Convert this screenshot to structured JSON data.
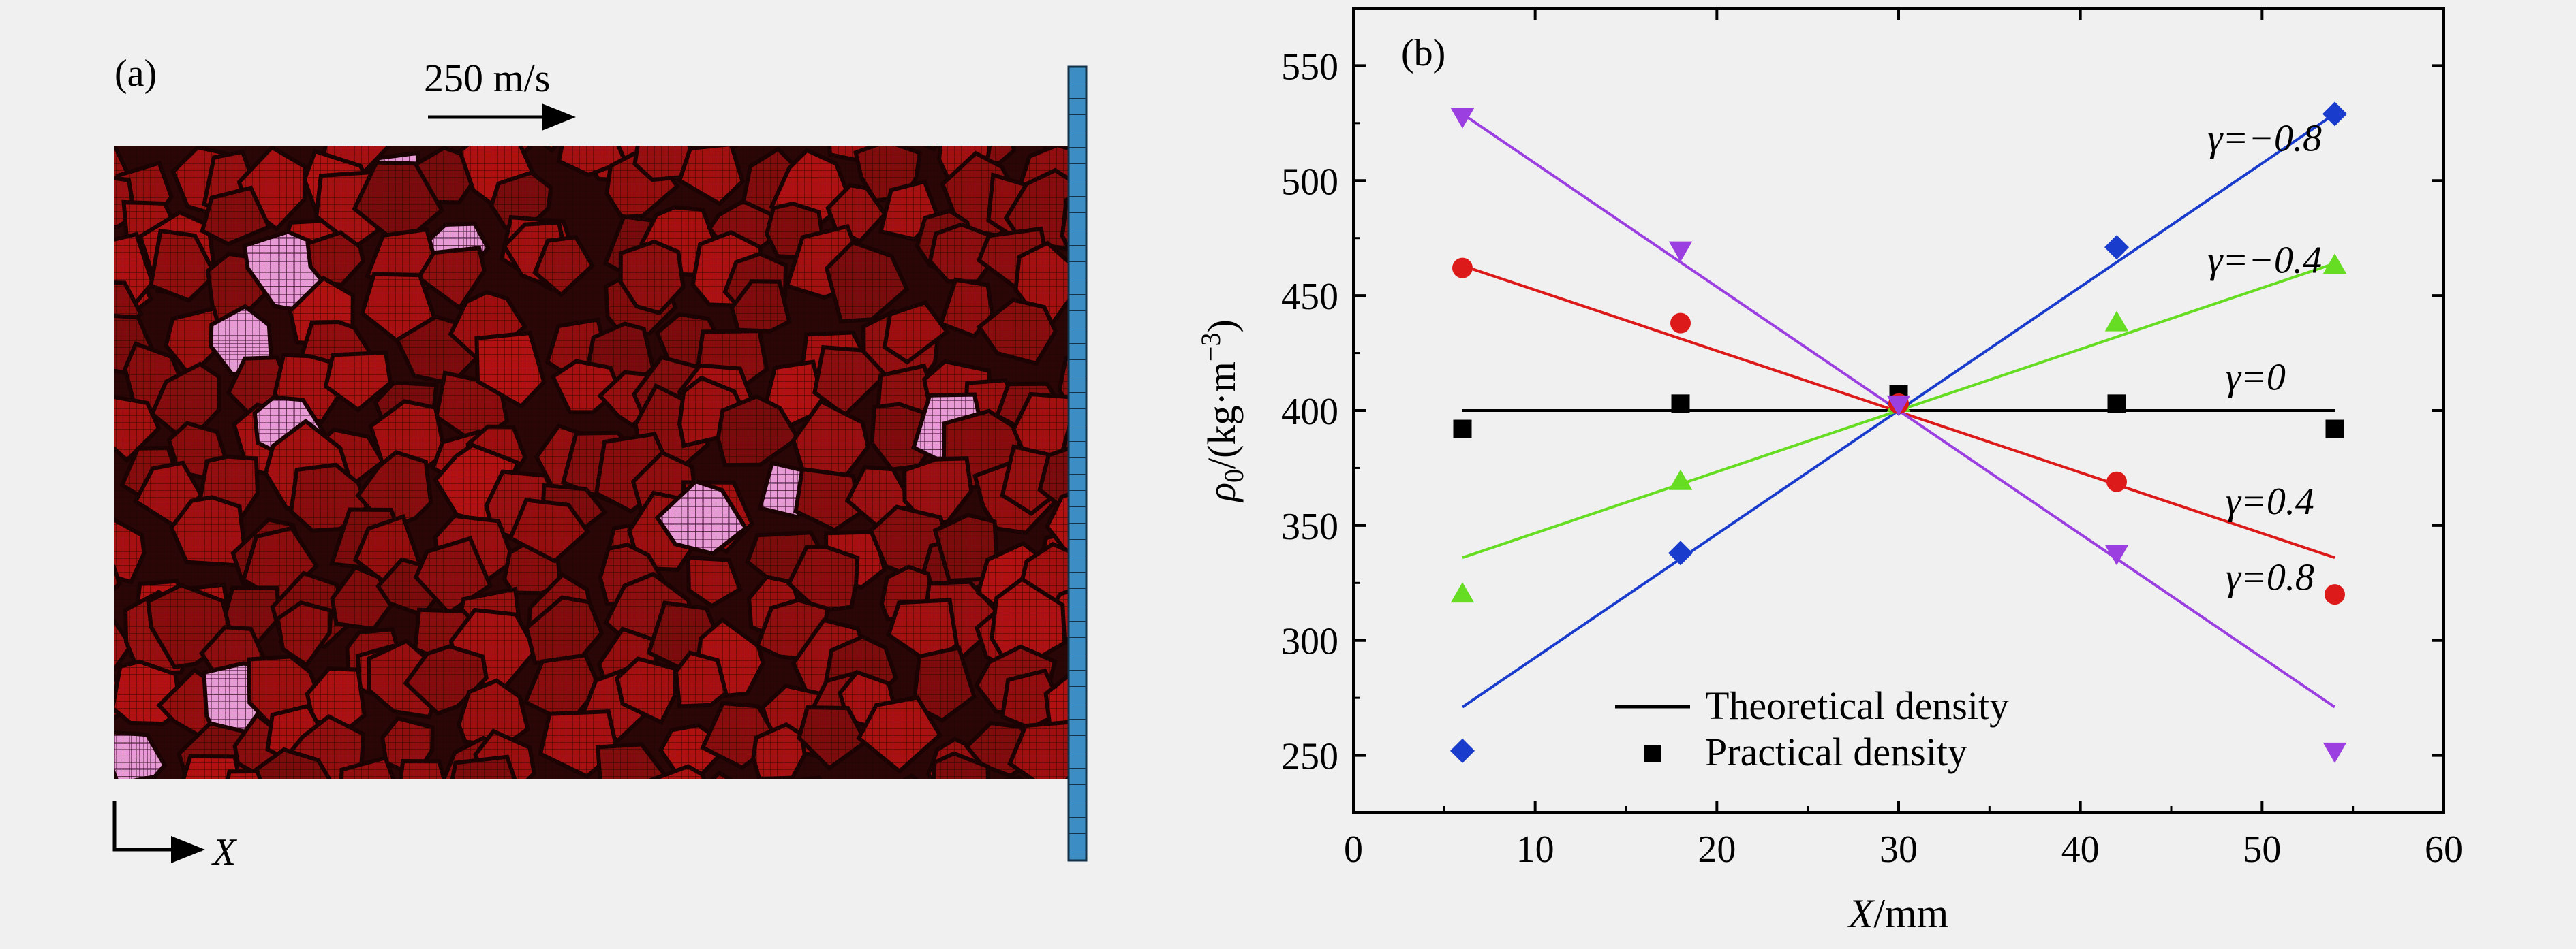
{
  "panel_a": {
    "label": "(a)",
    "velocity_label": "250 m/s",
    "axis_label": "X"
  },
  "chart_data": {
    "type": "line",
    "panel_label": "(b)",
    "xlabel": "X/mm",
    "ylabel": "ρ0/(kg·m−3)",
    "xlim": [
      0,
      60
    ],
    "ylim": [
      225,
      575
    ],
    "xticks": [
      0,
      10,
      20,
      30,
      40,
      50,
      60
    ],
    "yticks": [
      250,
      300,
      350,
      400,
      450,
      500,
      550
    ],
    "legend": {
      "placement": "bottom-center",
      "line_label": "Theoretical density",
      "marker_label": "Practical density"
    },
    "series": [
      {
        "name": "γ=−0.8",
        "color": "#1a3ccc",
        "marker": "diamond",
        "line": [
          [
            6,
            271
          ],
          [
            54,
            529
          ]
        ],
        "points": [
          [
            6,
            252
          ],
          [
            18,
            338
          ],
          [
            30,
            403
          ],
          [
            42,
            471
          ],
          [
            54,
            529
          ]
        ]
      },
      {
        "name": "γ=−0.4",
        "color": "#66dd22",
        "marker": "triangle-up",
        "line": [
          [
            6,
            336
          ],
          [
            54,
            464
          ]
        ],
        "points": [
          [
            6,
            320
          ],
          [
            18,
            369
          ],
          [
            30,
            403
          ],
          [
            42,
            438
          ],
          [
            54,
            463
          ]
        ]
      },
      {
        "name": "γ=0",
        "color": "#000000",
        "marker": "square",
        "line": [
          [
            6,
            400
          ],
          [
            54,
            400
          ]
        ],
        "points": [
          [
            6,
            392
          ],
          [
            18,
            403
          ],
          [
            30,
            407
          ],
          [
            42,
            403
          ],
          [
            54,
            392
          ]
        ]
      },
      {
        "name": "γ=0.4",
        "color": "#dd1a1a",
        "marker": "circle",
        "line": [
          [
            6,
            463
          ],
          [
            54,
            336
          ]
        ],
        "points": [
          [
            6,
            462
          ],
          [
            18,
            438
          ],
          [
            30,
            403
          ],
          [
            42,
            369
          ],
          [
            54,
            320
          ]
        ]
      },
      {
        "name": "γ=0.8",
        "color": "#9b3fe0",
        "marker": "triangle-down",
        "line": [
          [
            6,
            529
          ],
          [
            54,
            271
          ]
        ],
        "points": [
          [
            6,
            528
          ],
          [
            18,
            470
          ],
          [
            30,
            403
          ],
          [
            42,
            338
          ],
          [
            54,
            252
          ]
        ]
      }
    ],
    "annotations": [
      {
        "text": "γ=−0.8",
        "x": 47,
        "y": 513
      },
      {
        "text": "γ=−0.4",
        "x": 47,
        "y": 460
      },
      {
        "text": "γ=0",
        "x": 48,
        "y": 409
      },
      {
        "text": "γ=0.4",
        "x": 48,
        "y": 355
      },
      {
        "text": "γ=0.8",
        "x": 48,
        "y": 322
      }
    ]
  }
}
